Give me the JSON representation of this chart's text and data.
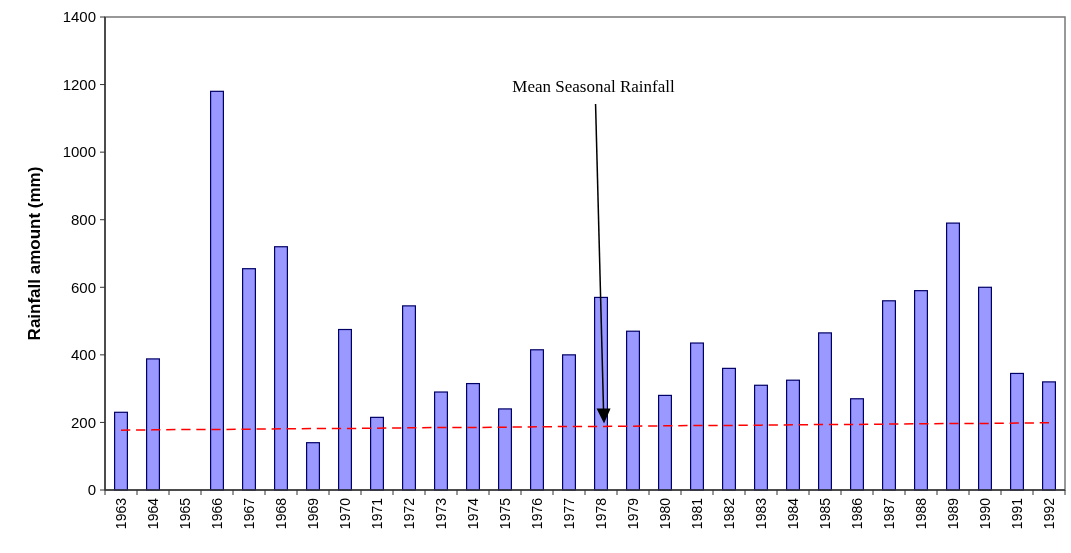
{
  "chart_data": {
    "type": "bar",
    "ylabel": "Rainfall amount (mm)",
    "categories": [
      "1963",
      "1964",
      "1965",
      "1966",
      "1967",
      "1968",
      "1969",
      "1970",
      "1971",
      "1972",
      "1973",
      "1974",
      "1975",
      "1976",
      "1977",
      "1978",
      "1979",
      "1980",
      "1981",
      "1982",
      "1983",
      "1984",
      "1985",
      "1986",
      "1987",
      "1988",
      "1989",
      "1990",
      "1991",
      "1992"
    ],
    "series": [
      {
        "color": "#9999ff",
        "values": [
          230,
          388,
          null,
          1180,
          655,
          720,
          140,
          475,
          215,
          545,
          290,
          315,
          240,
          415,
          400,
          570,
          470,
          280,
          435,
          360,
          310,
          325,
          465,
          270,
          560,
          590,
          790,
          600,
          345,
          320
        ]
      },
      {
        "type": "line",
        "name": "Mean Seasonal Rainfall",
        "color": "#ff0000",
        "line_style": "dashed",
        "values": [
          177,
          178,
          179,
          179,
          180,
          181,
          182,
          182,
          183,
          184,
          185,
          185,
          186,
          187,
          188,
          188,
          189,
          190,
          191,
          191,
          192,
          193,
          194,
          194,
          195,
          196,
          197,
          197,
          198,
          199
        ]
      }
    ],
    "ylim": [
      0,
      1400
    ],
    "yticks": [
      0,
      200,
      400,
      600,
      800,
      1000,
      1200,
      1400
    ],
    "grid": false,
    "legend": false
  }
}
